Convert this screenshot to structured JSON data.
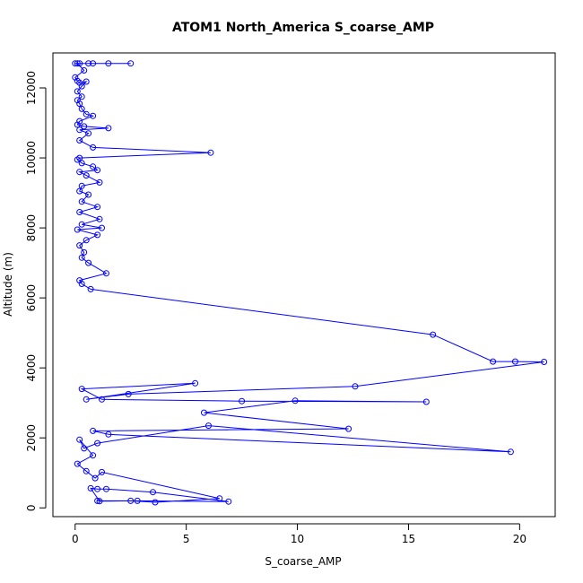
{
  "chart_data": {
    "type": "line",
    "title": "ATOM1 North_America S_coarse_AMP",
    "xlabel": "S_coarse_AMP",
    "ylabel": "Altitude (m)",
    "xlim": [
      -1,
      21.6
    ],
    "ylim": [
      -250,
      13000
    ],
    "x_ticks": [
      0,
      5,
      10,
      15,
      20
    ],
    "y_ticks": [
      0,
      2000,
      4000,
      6000,
      8000,
      10000,
      12000
    ],
    "grid": false,
    "legend": "none",
    "series_color": "#0000ff",
    "series": [
      {
        "points": [
          [
            0.0,
            12700
          ],
          [
            0.2,
            12700
          ],
          [
            0.6,
            12700
          ],
          [
            1.5,
            12700
          ],
          [
            2.5,
            12700
          ],
          [
            0.8,
            12700
          ],
          [
            0.1,
            12700
          ],
          [
            0.4,
            12500
          ],
          [
            0.0,
            12300
          ],
          [
            0.1,
            12200
          ],
          [
            0.2,
            12150
          ],
          [
            0.5,
            12180
          ],
          [
            0.3,
            12050
          ],
          [
            0.1,
            11900
          ],
          [
            0.3,
            11750
          ],
          [
            0.1,
            11650
          ],
          [
            0.2,
            11550
          ],
          [
            0.3,
            11400
          ],
          [
            0.5,
            11250
          ],
          [
            0.8,
            11200
          ],
          [
            0.2,
            11050
          ],
          [
            0.1,
            10950
          ],
          [
            0.4,
            10900
          ],
          [
            1.5,
            10850
          ],
          [
            0.2,
            10800
          ],
          [
            0.6,
            10700
          ],
          [
            0.2,
            10500
          ],
          [
            0.8,
            10300
          ],
          [
            6.1,
            10150
          ],
          [
            0.2,
            10000
          ],
          [
            0.1,
            9950
          ],
          [
            0.3,
            9850
          ],
          [
            0.8,
            9750
          ],
          [
            1.0,
            9650
          ],
          [
            0.2,
            9600
          ],
          [
            0.5,
            9500
          ],
          [
            1.1,
            9300
          ],
          [
            0.3,
            9200
          ],
          [
            0.2,
            9050
          ],
          [
            0.6,
            8950
          ],
          [
            0.3,
            8750
          ],
          [
            1.0,
            8600
          ],
          [
            0.2,
            8450
          ],
          [
            1.1,
            8250
          ],
          [
            0.3,
            8100
          ],
          [
            1.2,
            8000
          ],
          [
            0.1,
            7950
          ],
          [
            1.0,
            7800
          ],
          [
            0.5,
            7650
          ],
          [
            0.2,
            7500
          ],
          [
            0.4,
            7300
          ],
          [
            0.3,
            7150
          ],
          [
            0.6,
            7000
          ],
          [
            1.4,
            6700
          ],
          [
            0.2,
            6500
          ],
          [
            0.3,
            6400
          ],
          [
            0.7,
            6250
          ],
          [
            16.1,
            4950
          ],
          [
            18.8,
            4180
          ],
          [
            19.8,
            4180
          ],
          [
            21.1,
            4170
          ],
          [
            12.6,
            3470
          ],
          [
            2.4,
            3250
          ],
          [
            0.5,
            3100
          ],
          [
            5.4,
            3560
          ],
          [
            0.3,
            3400
          ],
          [
            1.2,
            3100
          ],
          [
            7.5,
            3050
          ],
          [
            15.8,
            3030
          ],
          [
            9.9,
            3060
          ],
          [
            5.8,
            2720
          ],
          [
            12.3,
            2260
          ],
          [
            0.8,
            2200
          ],
          [
            1.5,
            2100
          ],
          [
            19.6,
            1600
          ],
          [
            6.0,
            2350
          ],
          [
            1.0,
            1850
          ],
          [
            0.4,
            1700
          ],
          [
            0.2,
            1950
          ],
          [
            0.8,
            1500
          ],
          [
            0.1,
            1260
          ],
          [
            0.5,
            1050
          ],
          [
            0.9,
            850
          ],
          [
            1.2,
            1020
          ],
          [
            6.5,
            270
          ],
          [
            3.6,
            160
          ],
          [
            2.5,
            200
          ],
          [
            1.1,
            190
          ],
          [
            0.7,
            560
          ],
          [
            1.0,
            540
          ],
          [
            1.4,
            540
          ],
          [
            3.5,
            450
          ],
          [
            6.9,
            180
          ],
          [
            2.8,
            200
          ],
          [
            1.0,
            200
          ]
        ]
      }
    ]
  }
}
